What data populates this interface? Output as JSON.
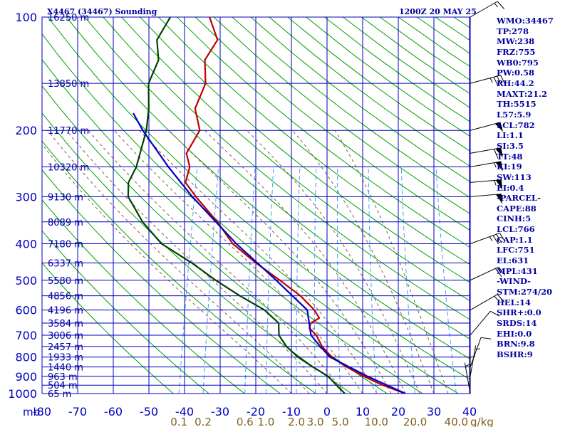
{
  "chart_data": {
    "type": "line",
    "title": "X4467 (34467) Sounding",
    "datetime": "1200Z 20 MAY 25",
    "pressure_axis": {
      "unit_label": "mb",
      "ticks": [
        100,
        200,
        300,
        400,
        500,
        600,
        700,
        800,
        900,
        1000
      ],
      "range": [
        100,
        1000
      ],
      "scale": "log"
    },
    "temperature_axis": {
      "ticks": [
        "-80",
        "-70",
        "-60",
        "-50",
        "-40",
        "-30",
        "-20",
        "-10",
        "0",
        "10",
        "20",
        "30",
        "40"
      ],
      "range": [
        -80,
        40
      ]
    },
    "mixing_ratio_axis": {
      "unit_label": "g/kg",
      "ticks": [
        "0.1",
        "0.2",
        "0.6",
        "1.0",
        "2.0",
        "3.0",
        "5.0",
        "10.0",
        "20.0",
        "40.0"
      ]
    },
    "heights": [
      {
        "p": 100,
        "label": "16250 m"
      },
      {
        "p": 150,
        "label": "13850 m"
      },
      {
        "p": 200,
        "label": "11770 m"
      },
      {
        "p": 250,
        "label": "10320 m"
      },
      {
        "p": 300,
        "label": "9130 m"
      },
      {
        "p": 350,
        "label": "8089 m"
      },
      {
        "p": 400,
        "label": "7180 m"
      },
      {
        "p": 450,
        "label": "6337 m"
      },
      {
        "p": 500,
        "label": "5580 m"
      },
      {
        "p": 550,
        "label": "4856 m"
      },
      {
        "p": 600,
        "label": "4196 m"
      },
      {
        "p": 650,
        "label": "3584 m"
      },
      {
        "p": 700,
        "label": "3006 m"
      },
      {
        "p": 750,
        "label": "2457 m"
      },
      {
        "p": 800,
        "label": "1933 m"
      },
      {
        "p": 850,
        "label": "1440 m"
      },
      {
        "p": 900,
        "label": "963 m"
      },
      {
        "p": 950,
        "label": "504 m"
      },
      {
        "p": 1000,
        "label": "65 m"
      }
    ],
    "series": [
      {
        "color": "#c00000",
        "points": [
          {
            "p": 1000,
            "t": 22.0
          },
          {
            "p": 950,
            "t": 15.0
          },
          {
            "p": 900,
            "t": 9.0
          },
          {
            "p": 850,
            "t": 3.5
          },
          {
            "p": 800,
            "t": -1.5
          },
          {
            "p": 750,
            "t": -5.0
          },
          {
            "p": 700,
            "t": -7.5
          },
          {
            "p": 670,
            "t": -10.0
          },
          {
            "p": 650,
            "t": -10.0
          },
          {
            "p": 630,
            "t": -8.0
          },
          {
            "p": 600,
            "t": -10.0
          },
          {
            "p": 550,
            "t": -15.0
          },
          {
            "p": 500,
            "t": -22.0
          },
          {
            "p": 450,
            "t": -30.0
          },
          {
            "p": 400,
            "t": -38.0
          },
          {
            "p": 350,
            "t": -44.0
          },
          {
            "p": 300,
            "t": -52.0
          },
          {
            "p": 275,
            "t": -56.0
          },
          {
            "p": 250,
            "t": -56.0
          },
          {
            "p": 230,
            "t": -58.0
          },
          {
            "p": 200,
            "t": -56.0
          },
          {
            "p": 175,
            "t": -59.0
          },
          {
            "p": 150,
            "t": -58.0
          },
          {
            "p": 130,
            "t": -60.0
          },
          {
            "p": 115,
            "t": -58.0
          },
          {
            "p": 100,
            "t": -62.0
          }
        ]
      },
      {
        "color": "#004000",
        "points": [
          {
            "p": 1000,
            "t": 5.0
          },
          {
            "p": 950,
            "t": 2.0
          },
          {
            "p": 900,
            "t": -1.0
          },
          {
            "p": 850,
            "t": -6.0
          },
          {
            "p": 800,
            "t": -11.0
          },
          {
            "p": 750,
            "t": -15.0
          },
          {
            "p": 700,
            "t": -18.0
          },
          {
            "p": 650,
            "t": -19.0
          },
          {
            "p": 600,
            "t": -24.0
          },
          {
            "p": 550,
            "t": -32.0
          },
          {
            "p": 500,
            "t": -40.0
          },
          {
            "p": 450,
            "t": -48.0
          },
          {
            "p": 400,
            "t": -58.0
          },
          {
            "p": 350,
            "t": -65.0
          },
          {
            "p": 300,
            "t": -71.0
          },
          {
            "p": 275,
            "t": -72.0
          },
          {
            "p": 250,
            "t": -71.0
          },
          {
            "p": 230,
            "t": -71.0
          },
          {
            "p": 200,
            "t": -71.0
          },
          {
            "p": 175,
            "t": -72.0
          },
          {
            "p": 150,
            "t": -74.0
          },
          {
            "p": 130,
            "t": -73.0
          },
          {
            "p": 115,
            "t": -75.0
          },
          {
            "p": 100,
            "t": -73.0
          }
        ]
      },
      {
        "color": "#0000c0",
        "points": [
          {
            "p": 1000,
            "t": 22.0
          },
          {
            "p": 900,
            "t": 10.0
          },
          {
            "p": 800,
            "t": -2.0
          },
          {
            "p": 750,
            "t": -5.5
          },
          {
            "p": 700,
            "t": -9.0
          },
          {
            "p": 600,
            "t": -12.0
          },
          {
            "p": 500,
            "t": -23.0
          },
          {
            "p": 400,
            "t": -37.0
          },
          {
            "p": 300,
            "t": -53.0
          },
          {
            "p": 250,
            "t": -62.0
          },
          {
            "p": 200,
            "t": -72.0
          },
          {
            "p": 180,
            "t": -76.0
          }
        ]
      }
    ],
    "wind_barbs": [
      {
        "p": 100,
        "dir": 240,
        "spd": 15
      },
      {
        "p": 150,
        "dir": 255,
        "spd": 35
      },
      {
        "p": 200,
        "dir": 255,
        "spd": 50
      },
      {
        "p": 230,
        "dir": 260,
        "spd": 60
      },
      {
        "p": 250,
        "dir": 260,
        "spd": 55
      },
      {
        "p": 275,
        "dir": 265,
        "spd": 55
      },
      {
        "p": 300,
        "dir": 265,
        "spd": 50
      },
      {
        "p": 400,
        "dir": 250,
        "spd": 35
      },
      {
        "p": 500,
        "dir": 245,
        "spd": 20
      },
      {
        "p": 600,
        "dir": 240,
        "spd": 15
      },
      {
        "p": 700,
        "dir": 220,
        "spd": 10
      },
      {
        "p": 850,
        "dir": 200,
        "spd": 10
      },
      {
        "p": 900,
        "dir": 190,
        "spd": 5
      },
      {
        "p": 950,
        "dir": 180,
        "spd": 5
      },
      {
        "p": 1000,
        "dir": 170,
        "spd": 5
      }
    ]
  },
  "indices": [
    "WMO:34467",
    "TP:278",
    "MW:238",
    "FRZ:755",
    "WB0:795",
    "PW:0.58",
    "RH:44.2",
    "MAXT:21.2",
    "TH:5515",
    "L57:5.9",
    "LCL:782",
    "LI:1.1",
    "SI:3.5",
    "TT:48",
    "KI:19",
    "SW:113",
    "EI:0.4",
    "-PARCEL-",
    "CAPE:88",
    "CINH:5",
    "LCL:766",
    "CAP:1.1",
    "LFC:751",
    "EL:631",
    "MPL:431",
    "-WIND-",
    "STM:274/20",
    "HEL:14",
    "SHR+:0.0",
    "SRDS:14",
    "EHI:0.0",
    "BRN:9.8",
    "BSHR:9"
  ]
}
